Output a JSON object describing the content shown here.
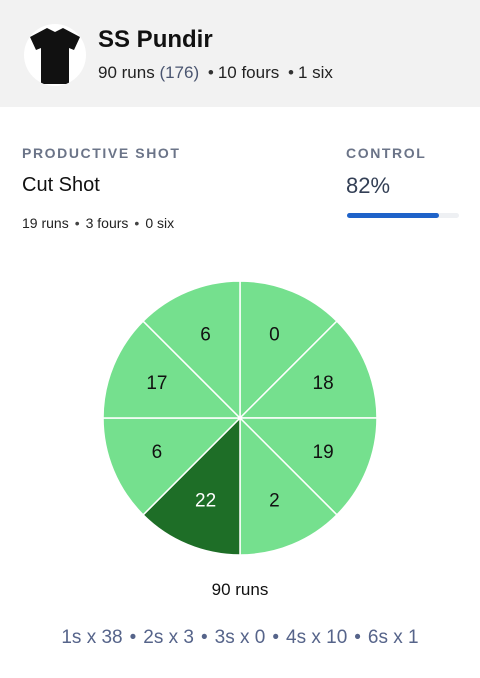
{
  "player": {
    "name": "SS Pundir",
    "runs": "90 runs",
    "balls": "(176)",
    "fours": "10 fours",
    "sixes": "1 six",
    "avatar_icon": "jersey-icon"
  },
  "productive_shot": {
    "label": "PRODUCTIVE SHOT",
    "name": "Cut Shot",
    "runs": "19 runs",
    "fours": "3 fours",
    "sixes": "0 six"
  },
  "control": {
    "label": "CONTROL",
    "value": "82%",
    "percent": 82,
    "bar_color": "#1f63c9"
  },
  "wagon_wheel": {
    "sectors": [
      {
        "runs": 0,
        "highlight": false
      },
      {
        "runs": 18,
        "highlight": false
      },
      {
        "runs": 19,
        "highlight": false
      },
      {
        "runs": 2,
        "highlight": false
      },
      {
        "runs": 22,
        "highlight": true
      },
      {
        "runs": 6,
        "highlight": false
      },
      {
        "runs": 17,
        "highlight": false
      },
      {
        "runs": 6,
        "highlight": false
      }
    ],
    "colors": {
      "fill": "#75e08e",
      "highlight": "#1e6e27",
      "divider": "#ffffff",
      "text": "#111111",
      "highlight_text": "#ffffff"
    },
    "total_label": "90 runs"
  },
  "breakdown": [
    "1s x 38",
    "2s x 3",
    "3s x 0",
    "4s x 10",
    "6s x 1"
  ]
}
